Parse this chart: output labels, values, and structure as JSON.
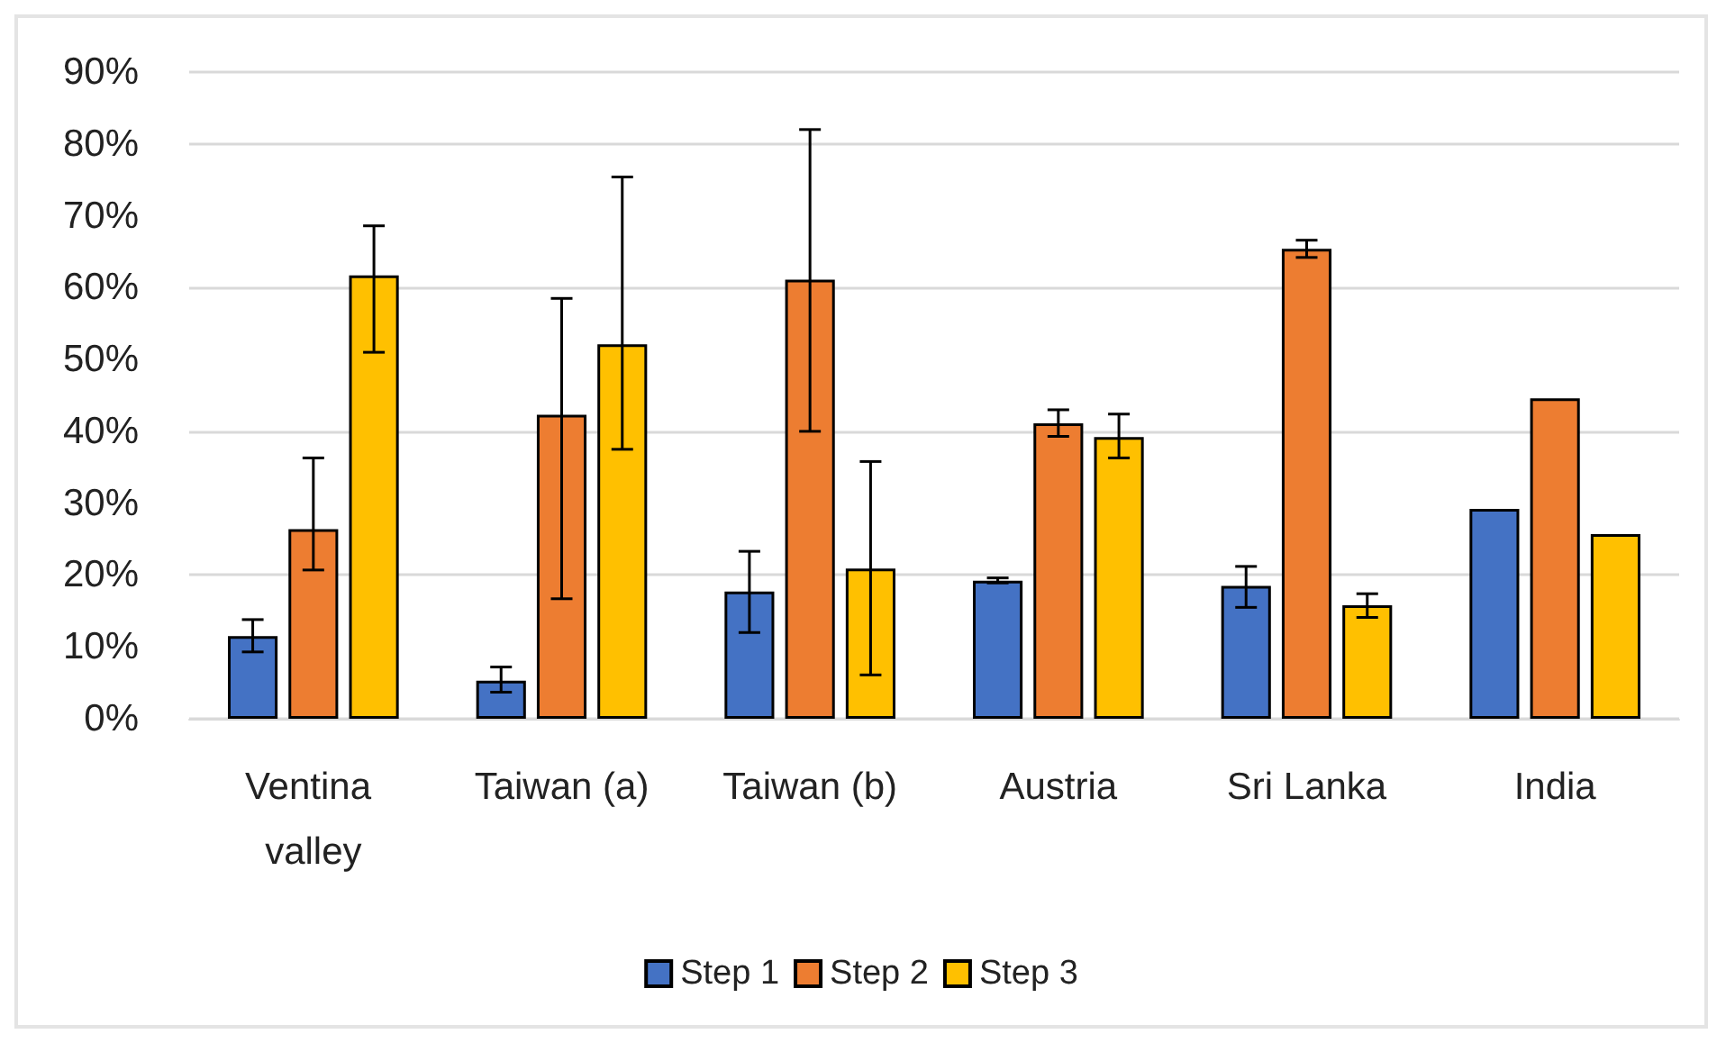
{
  "chart_data": {
    "type": "bar",
    "categories": [
      "Ventina valley",
      "Taiwan (a)",
      "Taiwan (b)",
      "Austria",
      "Sri Lanka",
      "India"
    ],
    "series": [
      {
        "name": "Step 1",
        "color": "#4472c4",
        "values": [
          11.5,
          5.3,
          17.7,
          19.2,
          18.5,
          29.2
        ],
        "errors": [
          [
            9.3,
            13.8
          ],
          [
            3.7,
            7.2
          ],
          [
            12.0,
            23.3
          ],
          [
            18.9,
            19.6
          ],
          [
            15.5,
            21.2
          ],
          null
        ]
      },
      {
        "name": "Step 2",
        "color": "#ed7d31",
        "values": [
          26.4,
          42.3,
          61.1,
          41.1,
          65.4,
          44.6
        ],
        "errors": [
          [
            20.7,
            36.3
          ],
          [
            16.7,
            58.5
          ],
          [
            40.0,
            82.0
          ],
          [
            39.3,
            43.0
          ],
          [
            64.2,
            66.6
          ],
          null
        ]
      },
      {
        "name": "Step 3",
        "color": "#ffc000",
        "values": [
          61.7,
          52.1,
          20.9,
          39.2,
          15.8,
          25.7
        ],
        "errors": [
          [
            51.0,
            68.6
          ],
          [
            37.5,
            75.4
          ],
          [
            6.1,
            35.8
          ],
          [
            36.3,
            42.4
          ],
          [
            14.1,
            17.4
          ],
          null
        ]
      }
    ],
    "ylim": [
      0,
      90
    ],
    "yticks": [
      {
        "value": 0,
        "label": "0%"
      },
      {
        "value": 10,
        "label": "10%"
      },
      {
        "value": 20,
        "label": "20%"
      },
      {
        "value": 30,
        "label": "30%"
      },
      {
        "value": 40,
        "label": "40%"
      },
      {
        "value": 50,
        "label": "50%"
      },
      {
        "value": 60,
        "label": "60%"
      },
      {
        "value": 70,
        "label": "70%"
      },
      {
        "value": 80,
        "label": "80%"
      },
      {
        "value": 90,
        "label": "90%"
      }
    ],
    "grid": "y",
    "legend": "bottom"
  }
}
